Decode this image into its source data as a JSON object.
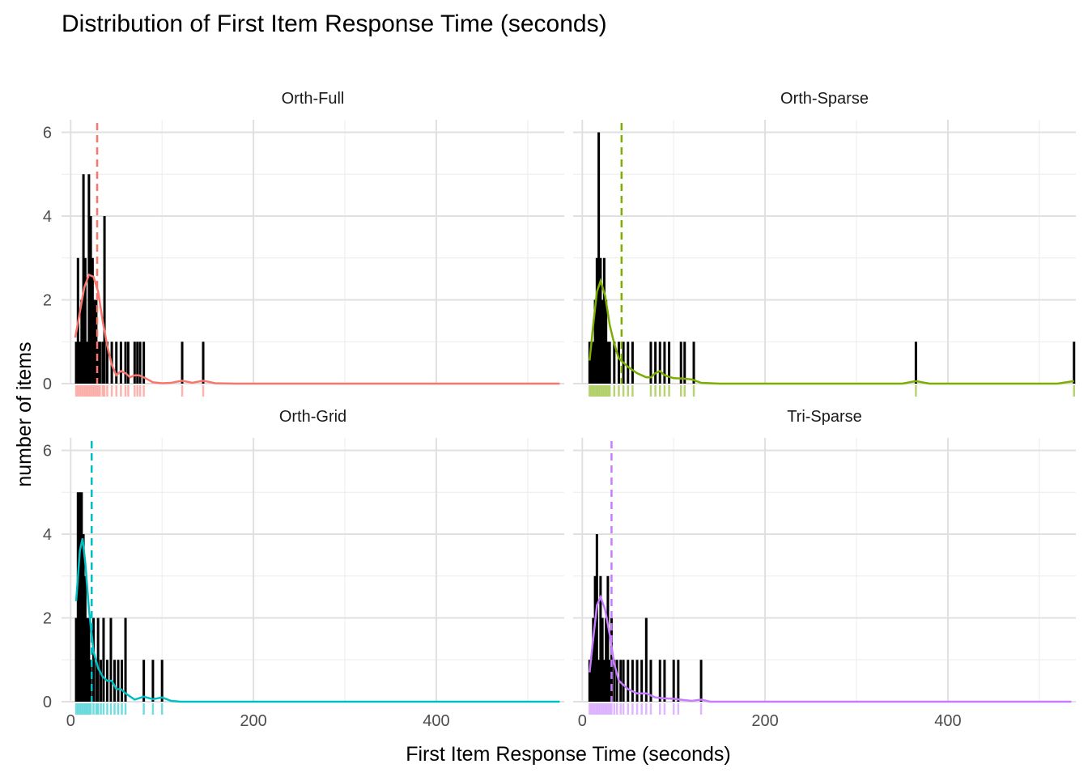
{
  "chart_data": {
    "type": "faceted-histogram",
    "title": "Distribution of First Item Response Time (seconds)",
    "xlabel": "First Item Response Time (seconds)",
    "ylabel": "number of items",
    "xlim": [
      -10,
      540
    ],
    "ylim": [
      0,
      6.3
    ],
    "xticks": [
      0,
      200,
      400
    ],
    "yticks": [
      0,
      2,
      4,
      6
    ],
    "grid": true,
    "legend": "none",
    "facets": [
      {
        "name": "Orth-Full",
        "color": "#F8766D",
        "mean": 29,
        "bars": [
          [
            6,
            1
          ],
          [
            8,
            3
          ],
          [
            10,
            1
          ],
          [
            12,
            2
          ],
          [
            14,
            5
          ],
          [
            16,
            3
          ],
          [
            18,
            1
          ],
          [
            20,
            5
          ],
          [
            22,
            4
          ],
          [
            24,
            3
          ],
          [
            26,
            2
          ],
          [
            28,
            2
          ],
          [
            30,
            1
          ],
          [
            32,
            1
          ],
          [
            35,
            1
          ],
          [
            37,
            4
          ],
          [
            40,
            1
          ],
          [
            45,
            1
          ],
          [
            50,
            1
          ],
          [
            55,
            1
          ],
          [
            60,
            1
          ],
          [
            63,
            1
          ],
          [
            70,
            1
          ],
          [
            73,
            1
          ],
          [
            76,
            1
          ],
          [
            80,
            1
          ],
          [
            122,
            1
          ],
          [
            145,
            1
          ]
        ],
        "density": [
          [
            5,
            1.1
          ],
          [
            10,
            1.7
          ],
          [
            15,
            2.3
          ],
          [
            20,
            2.6
          ],
          [
            25,
            2.55
          ],
          [
            30,
            2.2
          ],
          [
            35,
            1.5
          ],
          [
            40,
            0.9
          ],
          [
            45,
            0.45
          ],
          [
            50,
            0.2
          ],
          [
            55,
            0.3
          ],
          [
            60,
            0.25
          ],
          [
            65,
            0.15
          ],
          [
            70,
            0.2
          ],
          [
            75,
            0.2
          ],
          [
            80,
            0.15
          ],
          [
            90,
            0.03
          ],
          [
            100,
            0.01
          ],
          [
            110,
            0.02
          ],
          [
            122,
            0.07
          ],
          [
            133,
            0.02
          ],
          [
            145,
            0.07
          ],
          [
            158,
            0.01
          ],
          [
            180,
            0.0
          ],
          [
            535,
            0.0
          ]
        ]
      },
      {
        "name": "Orth-Sparse",
        "color": "#7CAE00",
        "mean": 43,
        "bars": [
          [
            8,
            1
          ],
          [
            10,
            1
          ],
          [
            12,
            1
          ],
          [
            14,
            2
          ],
          [
            16,
            3
          ],
          [
            18,
            6
          ],
          [
            20,
            3
          ],
          [
            22,
            2
          ],
          [
            24,
            3
          ],
          [
            26,
            2
          ],
          [
            28,
            1
          ],
          [
            30,
            1
          ],
          [
            35,
            1
          ],
          [
            40,
            1
          ],
          [
            45,
            1
          ],
          [
            50,
            1
          ],
          [
            55,
            1
          ],
          [
            75,
            1
          ],
          [
            80,
            1
          ],
          [
            85,
            1
          ],
          [
            90,
            1
          ],
          [
            95,
            1
          ],
          [
            108,
            1
          ],
          [
            112,
            1
          ],
          [
            122,
            1
          ],
          [
            365,
            1
          ],
          [
            538,
            1
          ]
        ],
        "density": [
          [
            8,
            0.55
          ],
          [
            12,
            1.4
          ],
          [
            16,
            2.2
          ],
          [
            20,
            2.45
          ],
          [
            25,
            2.1
          ],
          [
            30,
            1.4
          ],
          [
            35,
            0.95
          ],
          [
            40,
            0.6
          ],
          [
            50,
            0.4
          ],
          [
            60,
            0.25
          ],
          [
            70,
            0.15
          ],
          [
            75,
            0.15
          ],
          [
            80,
            0.25
          ],
          [
            85,
            0.3
          ],
          [
            90,
            0.2
          ],
          [
            100,
            0.13
          ],
          [
            110,
            0.12
          ],
          [
            120,
            0.1
          ],
          [
            130,
            0.02
          ],
          [
            150,
            0.0
          ],
          [
            350,
            0.0
          ],
          [
            365,
            0.06
          ],
          [
            380,
            0.0
          ],
          [
            520,
            0.0
          ],
          [
            538,
            0.06
          ]
        ]
      },
      {
        "name": "Orth-Grid",
        "color": "#00BFC4",
        "mean": 23,
        "bars": [
          [
            6,
            2
          ],
          [
            8,
            5
          ],
          [
            10,
            5
          ],
          [
            12,
            5
          ],
          [
            14,
            4
          ],
          [
            16,
            3
          ],
          [
            18,
            2
          ],
          [
            20,
            2
          ],
          [
            22,
            1
          ],
          [
            25,
            2
          ],
          [
            28,
            1
          ],
          [
            30,
            2
          ],
          [
            33,
            1
          ],
          [
            36,
            2
          ],
          [
            40,
            1
          ],
          [
            44,
            2
          ],
          [
            48,
            1
          ],
          [
            52,
            1
          ],
          [
            56,
            1
          ],
          [
            60,
            2
          ],
          [
            80,
            1
          ],
          [
            90,
            1
          ],
          [
            100,
            1
          ]
        ],
        "density": [
          [
            6,
            2.4
          ],
          [
            10,
            3.6
          ],
          [
            13,
            3.9
          ],
          [
            16,
            3.3
          ],
          [
            20,
            2.2
          ],
          [
            25,
            1.2
          ],
          [
            30,
            0.8
          ],
          [
            35,
            0.6
          ],
          [
            40,
            0.5
          ],
          [
            45,
            0.5
          ],
          [
            50,
            0.3
          ],
          [
            55,
            0.3
          ],
          [
            60,
            0.2
          ],
          [
            70,
            0.05
          ],
          [
            80,
            0.12
          ],
          [
            90,
            0.06
          ],
          [
            100,
            0.1
          ],
          [
            110,
            0.02
          ],
          [
            120,
            0.0
          ],
          [
            535,
            0.0
          ]
        ]
      },
      {
        "name": "Tri-Sparse",
        "color": "#C77CFF",
        "mean": 32,
        "bars": [
          [
            8,
            1
          ],
          [
            10,
            1
          ],
          [
            12,
            2
          ],
          [
            14,
            3
          ],
          [
            16,
            4
          ],
          [
            18,
            1
          ],
          [
            20,
            3
          ],
          [
            22,
            2
          ],
          [
            24,
            1
          ],
          [
            26,
            2
          ],
          [
            28,
            3
          ],
          [
            30,
            1
          ],
          [
            32,
            2
          ],
          [
            35,
            1
          ],
          [
            38,
            1
          ],
          [
            42,
            1
          ],
          [
            45,
            1
          ],
          [
            50,
            1
          ],
          [
            55,
            1
          ],
          [
            60,
            1
          ],
          [
            65,
            1
          ],
          [
            70,
            2
          ],
          [
            75,
            1
          ],
          [
            85,
            1
          ],
          [
            90,
            1
          ],
          [
            100,
            1
          ],
          [
            105,
            1
          ],
          [
            130,
            1
          ]
        ],
        "density": [
          [
            8,
            0.7
          ],
          [
            12,
            1.5
          ],
          [
            16,
            2.3
          ],
          [
            20,
            2.5
          ],
          [
            25,
            2.2
          ],
          [
            30,
            1.6
          ],
          [
            35,
            0.9
          ],
          [
            40,
            0.5
          ],
          [
            50,
            0.3
          ],
          [
            60,
            0.2
          ],
          [
            70,
            0.2
          ],
          [
            80,
            0.1
          ],
          [
            90,
            0.08
          ],
          [
            100,
            0.07
          ],
          [
            110,
            0.04
          ],
          [
            120,
            0.02
          ],
          [
            130,
            0.05
          ],
          [
            140,
            0.0
          ],
          [
            535,
            0.0
          ]
        ]
      }
    ]
  }
}
